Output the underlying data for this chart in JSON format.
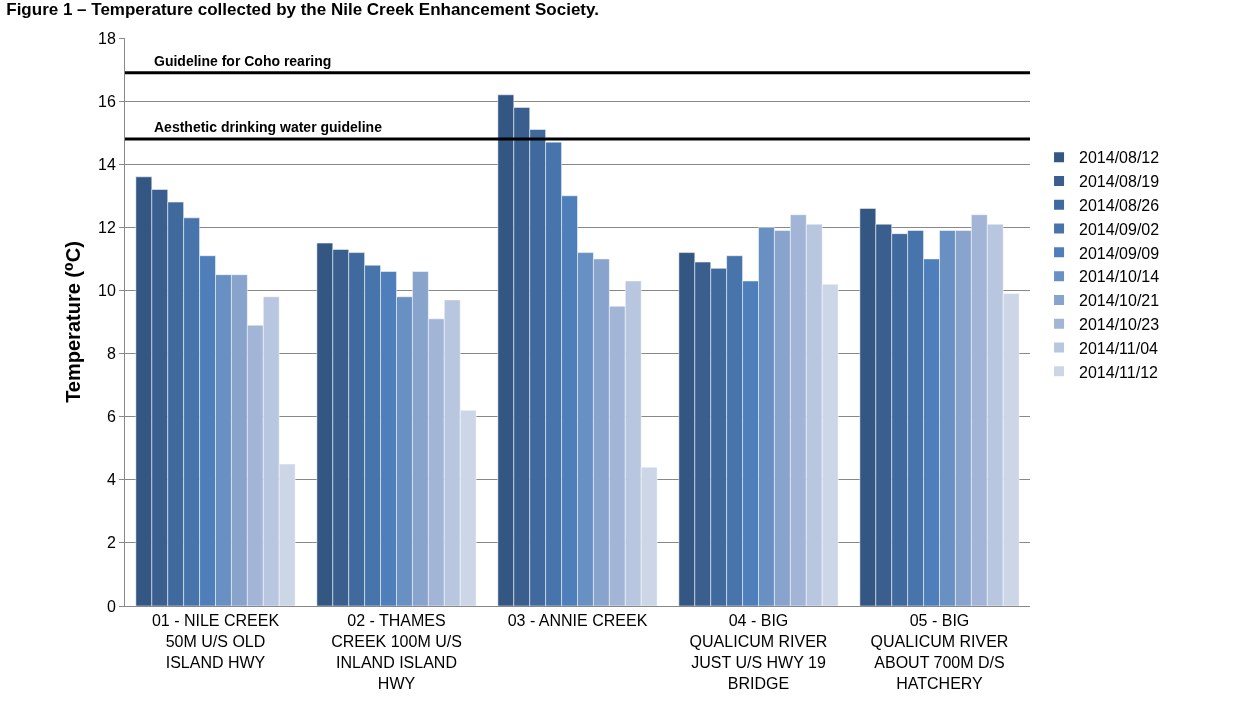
{
  "chart_data": {
    "type": "bar",
    "title": "Figure 1 – Temperature collected by the Nile Creek Enhancement Society.",
    "ylabel": "Temperature (⁰C)",
    "categories": [
      "01 - NILE CREEK 50M U/S OLD ISLAND HWY",
      "02 - THAMES CREEK 100M U/S INLAND ISLAND HWY",
      "03 - ANNIE CREEK",
      "04 - BIG QUALICUM RIVER JUST U/S HWY 19 BRIDGE",
      "05 - BIG QUALICUM RIVER ABOUT 700M D/S HATCHERY"
    ],
    "series": [
      {
        "name": "2014/08/12",
        "color": "#335782",
        "values": [
          13.6,
          11.5,
          16.2,
          11.2,
          12.6
        ]
      },
      {
        "name": "2014/08/19",
        "color": "#3a5f8f",
        "values": [
          13.2,
          11.3,
          15.8,
          10.9,
          12.1
        ]
      },
      {
        "name": "2014/08/26",
        "color": "#406a9d",
        "values": [
          12.8,
          11.2,
          15.1,
          10.7,
          11.8
        ]
      },
      {
        "name": "2014/09/02",
        "color": "#4774aa",
        "values": [
          12.3,
          10.8,
          14.7,
          11.1,
          11.9
        ]
      },
      {
        "name": "2014/09/09",
        "color": "#4e7fba",
        "values": [
          11.1,
          10.6,
          13.0,
          10.3,
          11.0
        ]
      },
      {
        "name": "2014/10/14",
        "color": "#6990c3",
        "values": [
          10.5,
          9.8,
          11.2,
          12.0,
          11.9
        ]
      },
      {
        "name": "2014/10/21",
        "color": "#89a4cc",
        "values": [
          10.5,
          10.6,
          11.0,
          11.9,
          11.9
        ]
      },
      {
        "name": "2014/10/23",
        "color": "#a2b5d6",
        "values": [
          8.9,
          9.1,
          9.5,
          12.4,
          12.4
        ]
      },
      {
        "name": "2014/11/04",
        "color": "#b8c6e0",
        "values": [
          9.8,
          9.7,
          10.3,
          12.1,
          12.1
        ]
      },
      {
        "name": "2014/11/12",
        "color": "#ccd6e6",
        "values": [
          4.5,
          6.2,
          4.4,
          10.2,
          9.9
        ]
      }
    ],
    "ylim": [
      0,
      18
    ],
    "yticks": [
      0,
      2,
      4,
      6,
      8,
      10,
      12,
      14,
      16,
      18
    ],
    "grid": "y",
    "legend": "right",
    "ref_lines": [
      {
        "axis": "y",
        "value": 16.9,
        "label": "Guideline for Coho rearing",
        "color": "#000000"
      },
      {
        "axis": "y",
        "value": 14.8,
        "label": "Aesthetic drinking water guideline",
        "color": "#000000"
      }
    ]
  }
}
